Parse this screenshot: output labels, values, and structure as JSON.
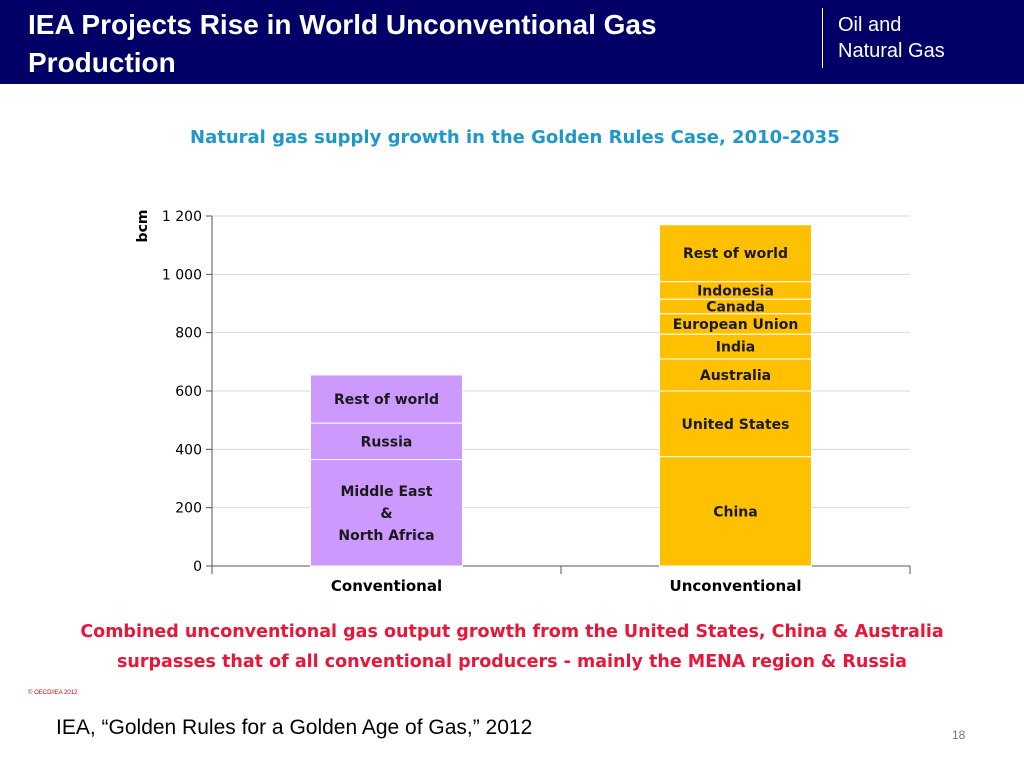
{
  "slide": {
    "title": "IEA Projects Rise in World Unconventional Gas Production",
    "brand_line1": "Oil and",
    "brand_line2": "Natural Gas",
    "caption_line1": "Combined unconventional gas output growth from the United States, China & Australia",
    "caption_line2": "surpasses that of all conventional producers - mainly the MENA region & Russia",
    "copyright": "© OECD/IEA 2012",
    "source": "IEA, “Golden Rules for a Golden Age of Gas,” 2012",
    "page_number": "18"
  },
  "colors": {
    "header_bg": "#000066",
    "chart_title": "#1f97c9",
    "caption": "#e8173a",
    "conventional_bar": "#cc99ff",
    "unconventional_bar": "#ffc000"
  },
  "chart_data": {
    "type": "bar",
    "stacked": true,
    "title": "Natural gas supply growth in the Golden Rules Case, 2010-2035",
    "ylabel": "bcm",
    "xlabel": "",
    "ylim": [
      0,
      1200
    ],
    "yticks": [
      0,
      200,
      400,
      600,
      800,
      1000,
      1200
    ],
    "ytick_labels": [
      "0",
      "200",
      "400",
      "600",
      "800",
      "1 000",
      "1 200"
    ],
    "grid": true,
    "categories": [
      "Conventional",
      "Unconventional"
    ],
    "stacks": [
      {
        "category": "Conventional",
        "color": "#cc99ff",
        "segments": [
          {
            "label": "Middle East\n&\nNorth Africa",
            "value": 365
          },
          {
            "label": "Russia",
            "value": 125
          },
          {
            "label": "Rest of world",
            "value": 165
          }
        ]
      },
      {
        "category": "Unconventional",
        "color": "#ffc000",
        "segments": [
          {
            "label": "China",
            "value": 375
          },
          {
            "label": "United States",
            "value": 225
          },
          {
            "label": "Australia",
            "value": 110
          },
          {
            "label": "India",
            "value": 85
          },
          {
            "label": "European Union",
            "value": 70
          },
          {
            "label": "Canada",
            "value": 50
          },
          {
            "label": "Indonesia",
            "value": 60
          },
          {
            "label": "Rest of world",
            "value": 195
          }
        ]
      }
    ]
  }
}
